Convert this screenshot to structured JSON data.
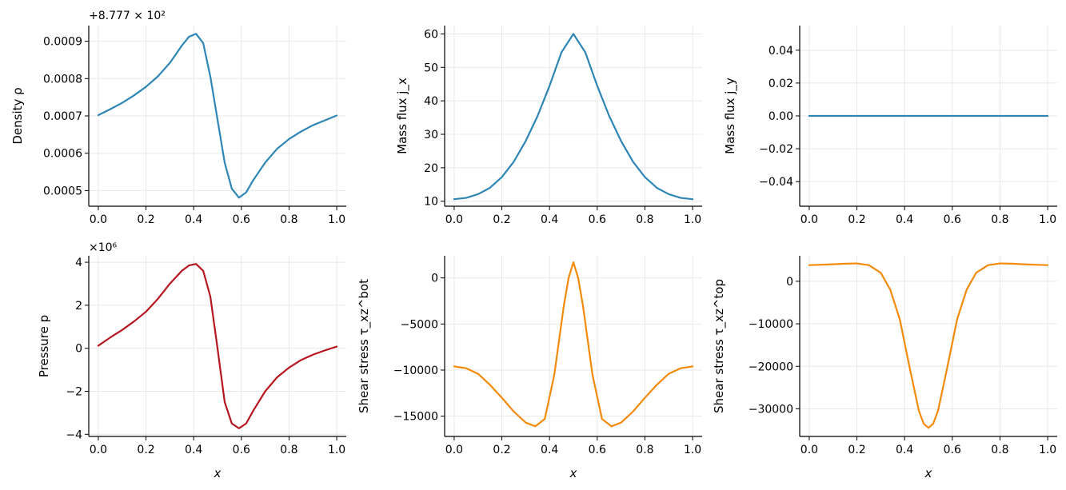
{
  "colors": {
    "blue": "#2e86b5",
    "red": "#b5161f",
    "orange": "#f38a0a"
  },
  "chart_data": [
    {
      "type": "line",
      "ylabel": "Density ρ",
      "xlabel": "",
      "offset_label": "+8.777 × 10²",
      "xlim": [
        -0.04,
        1.04
      ],
      "ylim": [
        0.000458,
        0.000942
      ],
      "xticks": [
        0.0,
        0.2,
        0.4,
        0.6,
        0.8,
        1.0
      ],
      "xtick_labels": [
        "0.0",
        "0.2",
        "0.4",
        "0.6",
        "0.8",
        "1.0"
      ],
      "yticks": [
        0.0005,
        0.0006,
        0.0007,
        0.0008,
        0.0009
      ],
      "ytick_labels": [
        "0.0005",
        "0.0006",
        "0.0007",
        "0.0008",
        "0.0009"
      ],
      "grid": true,
      "series": [
        {
          "color": "#2e86b5",
          "x": [
            0.0,
            0.05,
            0.1,
            0.15,
            0.2,
            0.25,
            0.3,
            0.35,
            0.38,
            0.41,
            0.44,
            0.47,
            0.5,
            0.53,
            0.56,
            0.59,
            0.62,
            0.65,
            0.7,
            0.75,
            0.8,
            0.85,
            0.9,
            0.95,
            1.0
          ],
          "y": [
            0.000702,
            0.000718,
            0.000735,
            0.000755,
            0.000778,
            0.000806,
            0.000842,
            0.000888,
            0.000912,
            0.00092,
            0.000895,
            0.000805,
            0.00069,
            0.000575,
            0.000505,
            0.000481,
            0.000495,
            0.000528,
            0.000575,
            0.000612,
            0.000638,
            0.000658,
            0.000675,
            0.000688,
            0.000701
          ]
        }
      ]
    },
    {
      "type": "line",
      "ylabel": "Mass flux j_x",
      "xlabel": "",
      "offset_label": "",
      "xlim": [
        -0.04,
        1.04
      ],
      "ylim": [
        8.5,
        62.5
      ],
      "xticks": [
        0.0,
        0.2,
        0.4,
        0.6,
        0.8,
        1.0
      ],
      "xtick_labels": [
        "0.0",
        "0.2",
        "0.4",
        "0.6",
        "0.8",
        "1.0"
      ],
      "yticks": [
        10,
        20,
        30,
        40,
        50,
        60
      ],
      "ytick_labels": [
        "10",
        "20",
        "30",
        "40",
        "50",
        "60"
      ],
      "grid": true,
      "series": [
        {
          "color": "#2e86b5",
          "x": [
            0.0,
            0.05,
            0.1,
            0.15,
            0.2,
            0.25,
            0.3,
            0.35,
            0.4,
            0.45,
            0.5,
            0.55,
            0.6,
            0.65,
            0.7,
            0.75,
            0.8,
            0.85,
            0.9,
            0.95,
            1.0
          ],
          "y": [
            10.6,
            11.0,
            12.1,
            14.0,
            17.2,
            21.8,
            28.0,
            35.5,
            44.5,
            54.5,
            60.0,
            54.5,
            44.5,
            35.5,
            28.0,
            21.8,
            17.2,
            14.0,
            12.1,
            11.0,
            10.6
          ]
        }
      ]
    },
    {
      "type": "line",
      "ylabel": "Mass flux j_y",
      "xlabel": "",
      "offset_label": "",
      "xlim": [
        -0.04,
        1.04
      ],
      "ylim": [
        -0.055,
        0.055
      ],
      "xticks": [
        0.0,
        0.2,
        0.4,
        0.6,
        0.8,
        1.0
      ],
      "xtick_labels": [
        "0.0",
        "0.2",
        "0.4",
        "0.6",
        "0.8",
        "1.0"
      ],
      "yticks": [
        -0.04,
        -0.02,
        0.0,
        0.02,
        0.04
      ],
      "ytick_labels": [
        "−0.04",
        "−0.02",
        "0.00",
        "0.02",
        "0.04"
      ],
      "grid": true,
      "series": [
        {
          "color": "#2e86b5",
          "x": [
            0.0,
            1.0
          ],
          "y": [
            0.0,
            0.0
          ]
        }
      ]
    },
    {
      "type": "line",
      "ylabel": "Pressure p",
      "xlabel": "x",
      "offset_label": "×10⁶",
      "xlim": [
        -0.04,
        1.04
      ],
      "ylim": [
        -4.1,
        4.3
      ],
      "xticks": [
        0.0,
        0.2,
        0.4,
        0.6,
        0.8,
        1.0
      ],
      "xtick_labels": [
        "0.0",
        "0.2",
        "0.4",
        "0.6",
        "0.8",
        "1.0"
      ],
      "yticks": [
        -4,
        -2,
        0,
        2,
        4
      ],
      "ytick_labels": [
        "−4",
        "−2",
        "0",
        "2",
        "4"
      ],
      "grid": true,
      "series": [
        {
          "color": "#b5161f",
          "x": [
            0.0,
            0.05,
            0.1,
            0.15,
            0.2,
            0.25,
            0.3,
            0.35,
            0.38,
            0.41,
            0.44,
            0.47,
            0.5,
            0.53,
            0.56,
            0.59,
            0.62,
            0.65,
            0.7,
            0.75,
            0.8,
            0.85,
            0.9,
            0.95,
            1.0
          ],
          "y": [
            0.12,
            0.5,
            0.85,
            1.25,
            1.7,
            2.3,
            3.0,
            3.6,
            3.85,
            3.92,
            3.6,
            2.4,
            0.0,
            -2.5,
            -3.5,
            -3.72,
            -3.5,
            -2.9,
            -2.0,
            -1.35,
            -0.9,
            -0.55,
            -0.3,
            -0.1,
            0.08
          ]
        }
      ]
    },
    {
      "type": "line",
      "ylabel": "Shear stress τ_xz^bot",
      "xlabel": "x",
      "offset_label": "",
      "xlim": [
        -0.04,
        1.04
      ],
      "ylim": [
        -17200,
        2400
      ],
      "xticks": [
        0.0,
        0.2,
        0.4,
        0.6,
        0.8,
        1.0
      ],
      "xtick_labels": [
        "0.0",
        "0.2",
        "0.4",
        "0.6",
        "0.8",
        "1.0"
      ],
      "yticks": [
        -15000,
        -10000,
        -5000,
        0
      ],
      "ytick_labels": [
        "−15000",
        "−10000",
        "−5000",
        "0"
      ],
      "grid": true,
      "series": [
        {
          "color": "#f38a0a",
          "x": [
            0.0,
            0.05,
            0.1,
            0.15,
            0.2,
            0.25,
            0.3,
            0.34,
            0.38,
            0.42,
            0.46,
            0.48,
            0.5,
            0.52,
            0.54,
            0.58,
            0.62,
            0.66,
            0.7,
            0.75,
            0.8,
            0.85,
            0.9,
            0.95,
            1.0
          ],
          "y": [
            -9600,
            -9800,
            -10400,
            -11600,
            -13000,
            -14500,
            -15700,
            -16100,
            -15300,
            -10500,
            -3000,
            0,
            1700,
            0,
            -3000,
            -10500,
            -15300,
            -16100,
            -15700,
            -14500,
            -13000,
            -11600,
            -10400,
            -9800,
            -9600
          ]
        }
      ]
    },
    {
      "type": "line",
      "ylabel": "Shear stress τ_xz^top",
      "xlabel": "x",
      "offset_label": "",
      "xlim": [
        -0.04,
        1.04
      ],
      "ylim": [
        -36500,
        6000
      ],
      "xticks": [
        0.0,
        0.2,
        0.4,
        0.6,
        0.8,
        1.0
      ],
      "xtick_labels": [
        "0.0",
        "0.2",
        "0.4",
        "0.6",
        "0.8",
        "1.0"
      ],
      "yticks": [
        -30000,
        -20000,
        -10000,
        0
      ],
      "ytick_labels": [
        "−30000",
        "−20000",
        "−10000",
        "0"
      ],
      "grid": true,
      "series": [
        {
          "color": "#f38a0a",
          "x": [
            0.0,
            0.05,
            0.1,
            0.15,
            0.2,
            0.25,
            0.3,
            0.34,
            0.38,
            0.42,
            0.46,
            0.48,
            0.5,
            0.52,
            0.54,
            0.58,
            0.62,
            0.66,
            0.7,
            0.75,
            0.8,
            0.85,
            0.9,
            0.95,
            1.0
          ],
          "y": [
            3800,
            3900,
            4000,
            4150,
            4200,
            3800,
            2000,
            -2000,
            -9000,
            -20000,
            -30500,
            -33500,
            -34500,
            -33500,
            -30500,
            -20000,
            -9000,
            -2000,
            2000,
            3800,
            4200,
            4150,
            4000,
            3900,
            3800
          ]
        }
      ]
    }
  ]
}
